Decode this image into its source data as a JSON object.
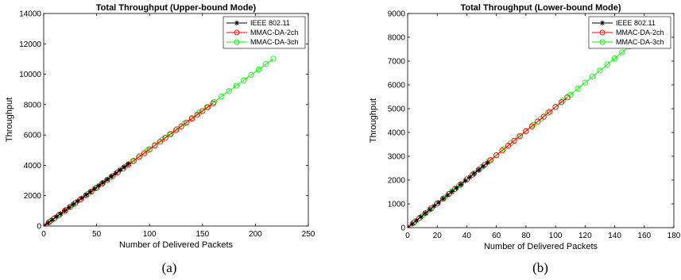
{
  "chart_data": [
    {
      "type": "line",
      "title": "Total Throughput (Upper-bound Mode)",
      "xlabel": "Number of Delivered Packets",
      "ylabel": "Throughput",
      "xlim": [
        0,
        250
      ],
      "ylim": [
        0,
        14000
      ],
      "xticks": [
        0,
        50,
        100,
        150,
        200,
        250
      ],
      "yticks": [
        0,
        2000,
        4000,
        6000,
        8000,
        10000,
        12000,
        14000
      ],
      "caption": "(a)",
      "legend_position": "top-right",
      "grid": false,
      "series": [
        {
          "name": "IEEE 802.11",
          "color": "#000000",
          "marker": "star",
          "x_start": 0,
          "x_end": 80,
          "x_step": 4,
          "slope": 51.2
        },
        {
          "name": "MMAC-DA-2ch",
          "color": "#ff0000",
          "marker": "circle",
          "x_start": 0,
          "x_end": 160,
          "x_step": 5,
          "slope": 50.5
        },
        {
          "name": "MMAC-DA-3ch",
          "color": "#00ff00",
          "marker": "circle",
          "x_start": 0,
          "x_end": 222,
          "x_step": 7,
          "slope": 50.8
        }
      ]
    },
    {
      "type": "line",
      "title": "Total Throughput (Lower-bound Mode)",
      "xlabel": "Number of Delivered Packets",
      "ylabel": "Throughput",
      "xlim": [
        0,
        180
      ],
      "ylim": [
        0,
        9000
      ],
      "xticks": [
        0,
        20,
        40,
        60,
        80,
        100,
        120,
        140,
        160,
        180
      ],
      "yticks": [
        0,
        1000,
        2000,
        3000,
        4000,
        5000,
        6000,
        7000,
        8000,
        9000
      ],
      "caption": "(b)",
      "legend_position": "top-right",
      "grid": false,
      "series": [
        {
          "name": "IEEE 802.11",
          "color": "#000000",
          "marker": "star",
          "x_start": 0,
          "x_end": 54,
          "x_step": 3,
          "slope": 50.5
        },
        {
          "name": "MMAC-DA-2ch",
          "color": "#ff0000",
          "marker": "circle",
          "x_start": 0,
          "x_end": 110,
          "x_step": 4,
          "slope": 50.7
        },
        {
          "name": "MMAC-DA-3ch",
          "color": "#00ff00",
          "marker": "circle",
          "x_start": 0,
          "x_end": 150,
          "x_step": 5,
          "slope": 50.8
        }
      ]
    }
  ]
}
